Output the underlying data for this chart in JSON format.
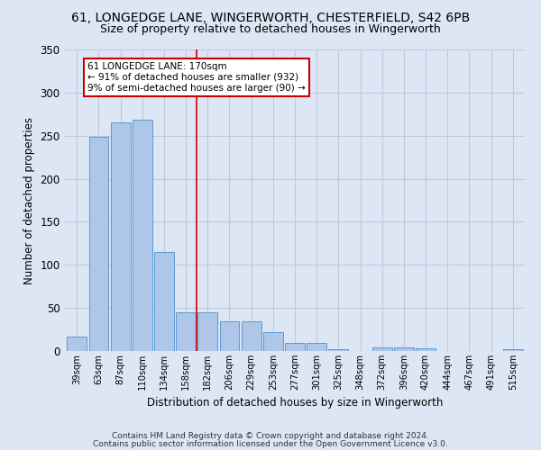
{
  "title_line1": "61, LONGEDGE LANE, WINGERWORTH, CHESTERFIELD, S42 6PB",
  "title_line2": "Size of property relative to detached houses in Wingerworth",
  "xlabel": "Distribution of detached houses by size in Wingerworth",
  "ylabel": "Number of detached properties",
  "footer_line1": "Contains HM Land Registry data © Crown copyright and database right 2024.",
  "footer_line2": "Contains public sector information licensed under the Open Government Licence v3.0.",
  "categories": [
    "39sqm",
    "63sqm",
    "87sqm",
    "110sqm",
    "134sqm",
    "158sqm",
    "182sqm",
    "206sqm",
    "229sqm",
    "253sqm",
    "277sqm",
    "301sqm",
    "325sqm",
    "348sqm",
    "372sqm",
    "396sqm",
    "420sqm",
    "444sqm",
    "467sqm",
    "491sqm",
    "515sqm"
  ],
  "values": [
    17,
    249,
    265,
    268,
    115,
    45,
    45,
    35,
    35,
    22,
    9,
    9,
    2,
    0,
    4,
    4,
    3,
    0,
    0,
    0,
    2
  ],
  "bar_color": "#aec6e8",
  "bar_edge_color": "#5b9bd5",
  "ref_line_x": 5.5,
  "ref_line_color": "#cc0000",
  "annotation_text": "61 LONGEDGE LANE: 170sqm\n← 91% of detached houses are smaller (932)\n9% of semi-detached houses are larger (90) →",
  "annotation_box_color": "#ffffff",
  "annotation_box_edge": "#cc0000",
  "ylim": [
    0,
    350
  ],
  "yticks": [
    0,
    50,
    100,
    150,
    200,
    250,
    300,
    350
  ],
  "bg_color": "#dce6f5",
  "plot_bg_color": "#dce6f5",
  "grid_color": "#c0c8d8",
  "title_fontsize": 10,
  "subtitle_fontsize": 9
}
